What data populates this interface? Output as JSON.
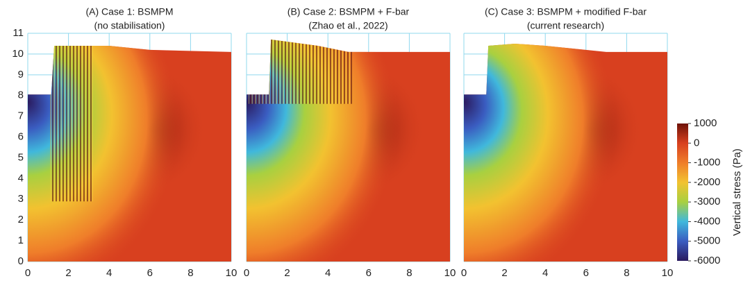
{
  "chart_data": [
    {
      "type": "heatmap",
      "title": "(A) Case 1: BSMPM",
      "subtitle": "(no stabilisation)",
      "xlim": [
        0,
        10
      ],
      "ylim": [
        0,
        11
      ],
      "xticks": [
        0,
        2,
        4,
        6,
        8,
        10
      ],
      "yticks": [
        0,
        1,
        2,
        3,
        4,
        5,
        6,
        7,
        8,
        9,
        10,
        11
      ],
      "grid": true
    },
    {
      "type": "heatmap",
      "title": "(B) Case 2: BSMPM + F-bar",
      "subtitle": "(Zhao et al., 2022)",
      "xlim": [
        0,
        10
      ],
      "ylim": [
        0,
        11
      ],
      "xticks": [
        0,
        2,
        4,
        6,
        8,
        10
      ],
      "grid": true
    },
    {
      "type": "heatmap",
      "title": "(C) Case 3: BSMPM + modified F-bar",
      "subtitle": "(current research)",
      "xlim": [
        0,
        10
      ],
      "ylim": [
        0,
        11
      ],
      "xticks": [
        0,
        2,
        4,
        6,
        8,
        10
      ],
      "grid": true
    }
  ],
  "colorbar": {
    "label": "Vertical stress (Pa)",
    "lim": [
      -6000,
      1000
    ],
    "ticks": [
      1000,
      0,
      -1000,
      -2000,
      -3000,
      -4000,
      -5000,
      -6000
    ],
    "colors": [
      "#2a1a5e",
      "#3a5cc0",
      "#40b8dc",
      "#a8d040",
      "#f2c230",
      "#ef7d2a",
      "#d8401f",
      "#6e1208"
    ]
  }
}
